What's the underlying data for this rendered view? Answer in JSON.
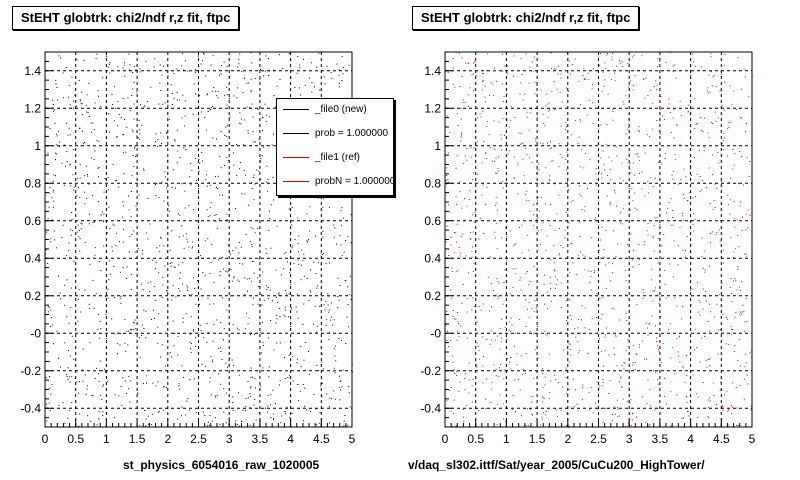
{
  "panels": [
    {
      "title": "StEHT globtrk: chi2/ndf r,z fit, ftpc",
      "caption": "st_physics_6054016_raw_1020005",
      "color": "#000000"
    },
    {
      "title": "StEHT globtrk: chi2/ndf r,z fit, ftpc",
      "caption": "v/daq_sl302.ittf/Sat/year_2005/CuCu200_HighTower/",
      "color": "#cc0000"
    }
  ],
  "legend": {
    "entries": [
      {
        "label": "_file0 (new)",
        "color": "#000000"
      },
      {
        "label": "prob = 1.000000",
        "color": "#000000"
      },
      {
        "label": "_file1 (ref)",
        "color": "#cc0000"
      },
      {
        "label": "probN = 1.000000",
        "color": "#cc0000"
      }
    ]
  },
  "chart_data": [
    {
      "type": "scatter",
      "title": "StEHT globtrk: chi2/ndf r,z fit, ftpc",
      "xlabel": "st_physics_6054016_raw_1020005",
      "ylabel": "",
      "xlim": [
        0,
        5
      ],
      "ylim": [
        -0.5,
        1.5
      ],
      "xticks": [
        "0",
        "0.5",
        "1",
        "1.5",
        "2",
        "2.5",
        "3",
        "3.5",
        "4",
        "4.5",
        "5"
      ],
      "yticks": [
        "-0.4",
        "-0.2",
        "-0",
        "0.2",
        "0.4",
        "0.6",
        "0.8",
        "1",
        "1.2",
        "1.4"
      ],
      "grid": true,
      "series": [
        {
          "name": "_file0 (new)",
          "color": "#000000",
          "points": "uniform scatter over the full plot area",
          "count": 1400
        }
      ]
    },
    {
      "type": "scatter",
      "title": "StEHT globtrk: chi2/ndf r,z fit, ftpc",
      "xlabel": "v/daq_sl302.ittf/Sat/year_2005/CuCu200_HighTower/",
      "ylabel": "",
      "xlim": [
        0,
        5
      ],
      "ylim": [
        -0.5,
        1.5
      ],
      "xticks": [
        "0",
        "0.5",
        "1",
        "1.5",
        "2",
        "2.5",
        "3",
        "3.5",
        "4",
        "4.5",
        "5"
      ],
      "yticks": [
        "-0.4",
        "-0.2",
        "-0",
        "0.2",
        "0.4",
        "0.6",
        "0.8",
        "1",
        "1.2",
        "1.4"
      ],
      "grid": true,
      "series": [
        {
          "name": "_file1 (ref)",
          "color": "#cc0000",
          "points": "uniform scatter over the full plot area",
          "count": 1400
        }
      ]
    }
  ]
}
